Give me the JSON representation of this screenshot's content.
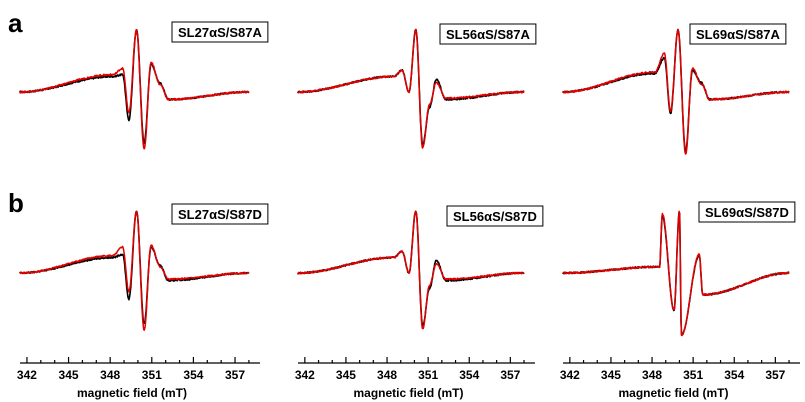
{
  "figure": {
    "panel_letters": [
      "a",
      "b"
    ]
  },
  "chart_data": [
    {
      "type": "line",
      "panel": "a",
      "label": "SL27αS/S87A",
      "xlim": [
        341.5,
        358.8
      ],
      "xticks": [
        342,
        345,
        348,
        351,
        354,
        357
      ],
      "xlabel": "magnetic field (mT)",
      "lineshape": "broad-narrow",
      "series": [
        {
          "color": "#000000",
          "x": [
            341.5,
            348.2,
            348.9,
            349.35,
            349.9,
            350.45,
            350.95,
            351.6,
            352.2,
            358.0
          ],
          "y": [
            0.0,
            0.25,
            0.28,
            -0.45,
            1.0,
            -0.82,
            0.45,
            0.14,
            -0.12,
            0.0
          ]
        },
        {
          "color": "#e00000",
          "x": [
            341.5,
            348.2,
            348.9,
            349.35,
            349.9,
            350.45,
            350.95,
            351.6,
            352.2,
            358.0
          ],
          "y": [
            0.0,
            0.28,
            0.38,
            -0.33,
            1.0,
            -0.92,
            0.48,
            0.12,
            -0.12,
            0.0
          ]
        }
      ]
    },
    {
      "type": "line",
      "panel": "a",
      "label": "SL56αS/S87A",
      "xlim": [
        341.5,
        358.8
      ],
      "xticks": [
        342,
        345,
        348,
        351,
        354,
        357
      ],
      "xlabel": "magnetic field (mT)",
      "lineshape": "broad",
      "series": [
        {
          "color": "#000000",
          "x": [
            341.5,
            348.5,
            349.1,
            349.6,
            350.1,
            350.6,
            351.1,
            351.6,
            352.3,
            358.0
          ],
          "y": [
            0.0,
            0.25,
            0.35,
            0.0,
            1.0,
            -0.85,
            -0.25,
            0.2,
            -0.12,
            0.0
          ]
        },
        {
          "color": "#e00000",
          "x": [
            341.5,
            348.5,
            349.1,
            349.6,
            350.1,
            350.6,
            351.1,
            351.6,
            352.3,
            358.0
          ],
          "y": [
            0.0,
            0.25,
            0.35,
            0.0,
            1.0,
            -0.9,
            -0.2,
            0.15,
            -0.1,
            0.0
          ]
        }
      ]
    },
    {
      "type": "line",
      "panel": "a",
      "label": "SL69αS/S87A",
      "xlim": [
        341.5,
        358.8
      ],
      "xticks": [
        342,
        345,
        348,
        351,
        354,
        357
      ],
      "xlabel": "magnetic field (mT)",
      "lineshape": "broad-narrow",
      "series": [
        {
          "color": "#000000",
          "x": [
            341.5,
            348.2,
            348.9,
            349.35,
            349.9,
            350.45,
            350.95,
            351.6,
            352.2,
            358.0
          ],
          "y": [
            0.0,
            0.3,
            0.55,
            -0.35,
            1.0,
            -0.95,
            0.35,
            0.15,
            -0.12,
            0.0
          ]
        },
        {
          "color": "#e00000",
          "x": [
            341.5,
            348.2,
            348.9,
            349.35,
            349.9,
            350.45,
            350.95,
            351.6,
            352.2,
            358.0
          ],
          "y": [
            0.0,
            0.32,
            0.62,
            -0.3,
            1.0,
            -1.0,
            0.38,
            0.13,
            -0.12,
            0.0
          ]
        }
      ]
    },
    {
      "type": "line",
      "panel": "b",
      "label": "SL27αS/S87D",
      "xlim": [
        341.5,
        358.8
      ],
      "xticks": [
        342,
        345,
        348,
        351,
        354,
        357
      ],
      "xlabel": "magnetic field (mT)",
      "lineshape": "broad-narrow",
      "series": [
        {
          "color": "#000000",
          "x": [
            341.5,
            348.2,
            348.9,
            349.35,
            349.9,
            350.45,
            350.95,
            351.6,
            352.2,
            358.0
          ],
          "y": [
            0.0,
            0.25,
            0.3,
            -0.42,
            1.0,
            -0.82,
            0.42,
            0.12,
            -0.12,
            0.0
          ]
        },
        {
          "color": "#e00000",
          "x": [
            341.5,
            348.2,
            348.9,
            349.35,
            349.9,
            350.45,
            350.95,
            351.6,
            352.2,
            358.0
          ],
          "y": [
            0.0,
            0.28,
            0.42,
            -0.3,
            1.0,
            -0.92,
            0.45,
            0.1,
            -0.1,
            0.0
          ]
        }
      ]
    },
    {
      "type": "line",
      "panel": "b",
      "label": "SL56αS/S87D",
      "xlim": [
        341.5,
        358.8
      ],
      "xticks": [
        342,
        345,
        348,
        351,
        354,
        357
      ],
      "xlabel": "magnetic field (mT)",
      "lineshape": "broad",
      "series": [
        {
          "color": "#000000",
          "x": [
            341.5,
            348.5,
            349.1,
            349.6,
            350.1,
            350.6,
            351.1,
            351.6,
            352.3,
            358.0
          ],
          "y": [
            0.0,
            0.25,
            0.35,
            0.0,
            1.0,
            -0.85,
            -0.25,
            0.2,
            -0.12,
            0.0
          ]
        },
        {
          "color": "#e00000",
          "x": [
            341.5,
            348.5,
            349.1,
            349.6,
            350.1,
            350.6,
            351.1,
            351.6,
            352.3,
            358.0
          ],
          "y": [
            0.0,
            0.25,
            0.35,
            0.0,
            1.0,
            -0.9,
            -0.2,
            0.15,
            -0.1,
            0.0
          ]
        }
      ]
    },
    {
      "type": "line",
      "panel": "b",
      "label": "SL69αS/S87D",
      "xlim": [
        341.5,
        358.8
      ],
      "xticks": [
        342,
        345,
        348,
        351,
        354,
        357
      ],
      "xlabel": "magnetic field (mT)",
      "lineshape": "narrow",
      "series": [
        {
          "color": "#000000",
          "x": [
            341.5,
            348.55,
            348.75,
            349.6,
            350.0,
            350.15,
            351.45,
            351.7,
            358.0
          ],
          "y": [
            0.0,
            0.1,
            0.92,
            -0.6,
            1.0,
            -1.0,
            0.28,
            -0.35,
            0.0
          ]
        },
        {
          "color": "#e00000",
          "x": [
            341.5,
            348.55,
            348.75,
            349.6,
            350.0,
            350.15,
            351.45,
            351.7,
            358.0
          ],
          "y": [
            0.0,
            0.1,
            0.95,
            -0.6,
            1.0,
            -1.0,
            0.3,
            -0.35,
            0.0
          ]
        }
      ]
    }
  ]
}
